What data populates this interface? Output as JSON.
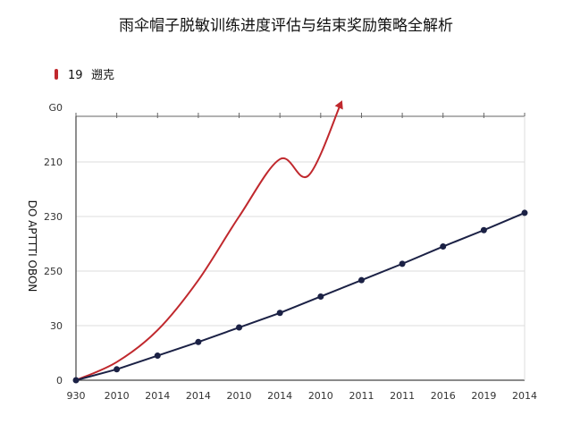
{
  "chart_data": {
    "type": "line",
    "title": "雨伞帽子脱敏训练进度评估与结束奖励策略全解析",
    "ylabel": "DO APTTTI OBON",
    "xlabel": "",
    "x_tick_labels": [
      "930",
      "2010",
      "2014",
      "2014",
      "2010",
      "2014",
      "2010",
      "2011",
      "2011",
      "2016",
      "2019",
      "2014"
    ],
    "y_tick_labels": [
      "0",
      "30",
      "250",
      "230",
      "210",
      "G0"
    ],
    "x": [
      0,
      1,
      2,
      3,
      4,
      5,
      6,
      7,
      8,
      9,
      10,
      11
    ],
    "legend": {
      "placement": "top-left",
      "entries": [
        {
          "marker": "19",
          "label": "遡克",
          "color": "#c0282d"
        }
      ]
    },
    "grid": true,
    "series": [
      {
        "color": "#c0282d",
        "kind": "curve-with-arrow",
        "points": [
          [
            0,
            0
          ],
          [
            1,
            20
          ],
          [
            2,
            55
          ],
          [
            3,
            110
          ],
          [
            4,
            180
          ],
          [
            5,
            243
          ],
          [
            5.7,
            225
          ],
          [
            6.5,
            305
          ]
        ]
      },
      {
        "color": "#1b2145",
        "kind": "line-with-markers",
        "values": [
          0,
          12,
          27,
          42,
          58,
          74,
          92,
          110,
          128,
          147,
          165,
          184
        ]
      }
    ]
  },
  "colors": {
    "accent": "#c0282d",
    "dark": "#1b2145",
    "grid": "#dcdcdc",
    "axis": "#444444"
  }
}
